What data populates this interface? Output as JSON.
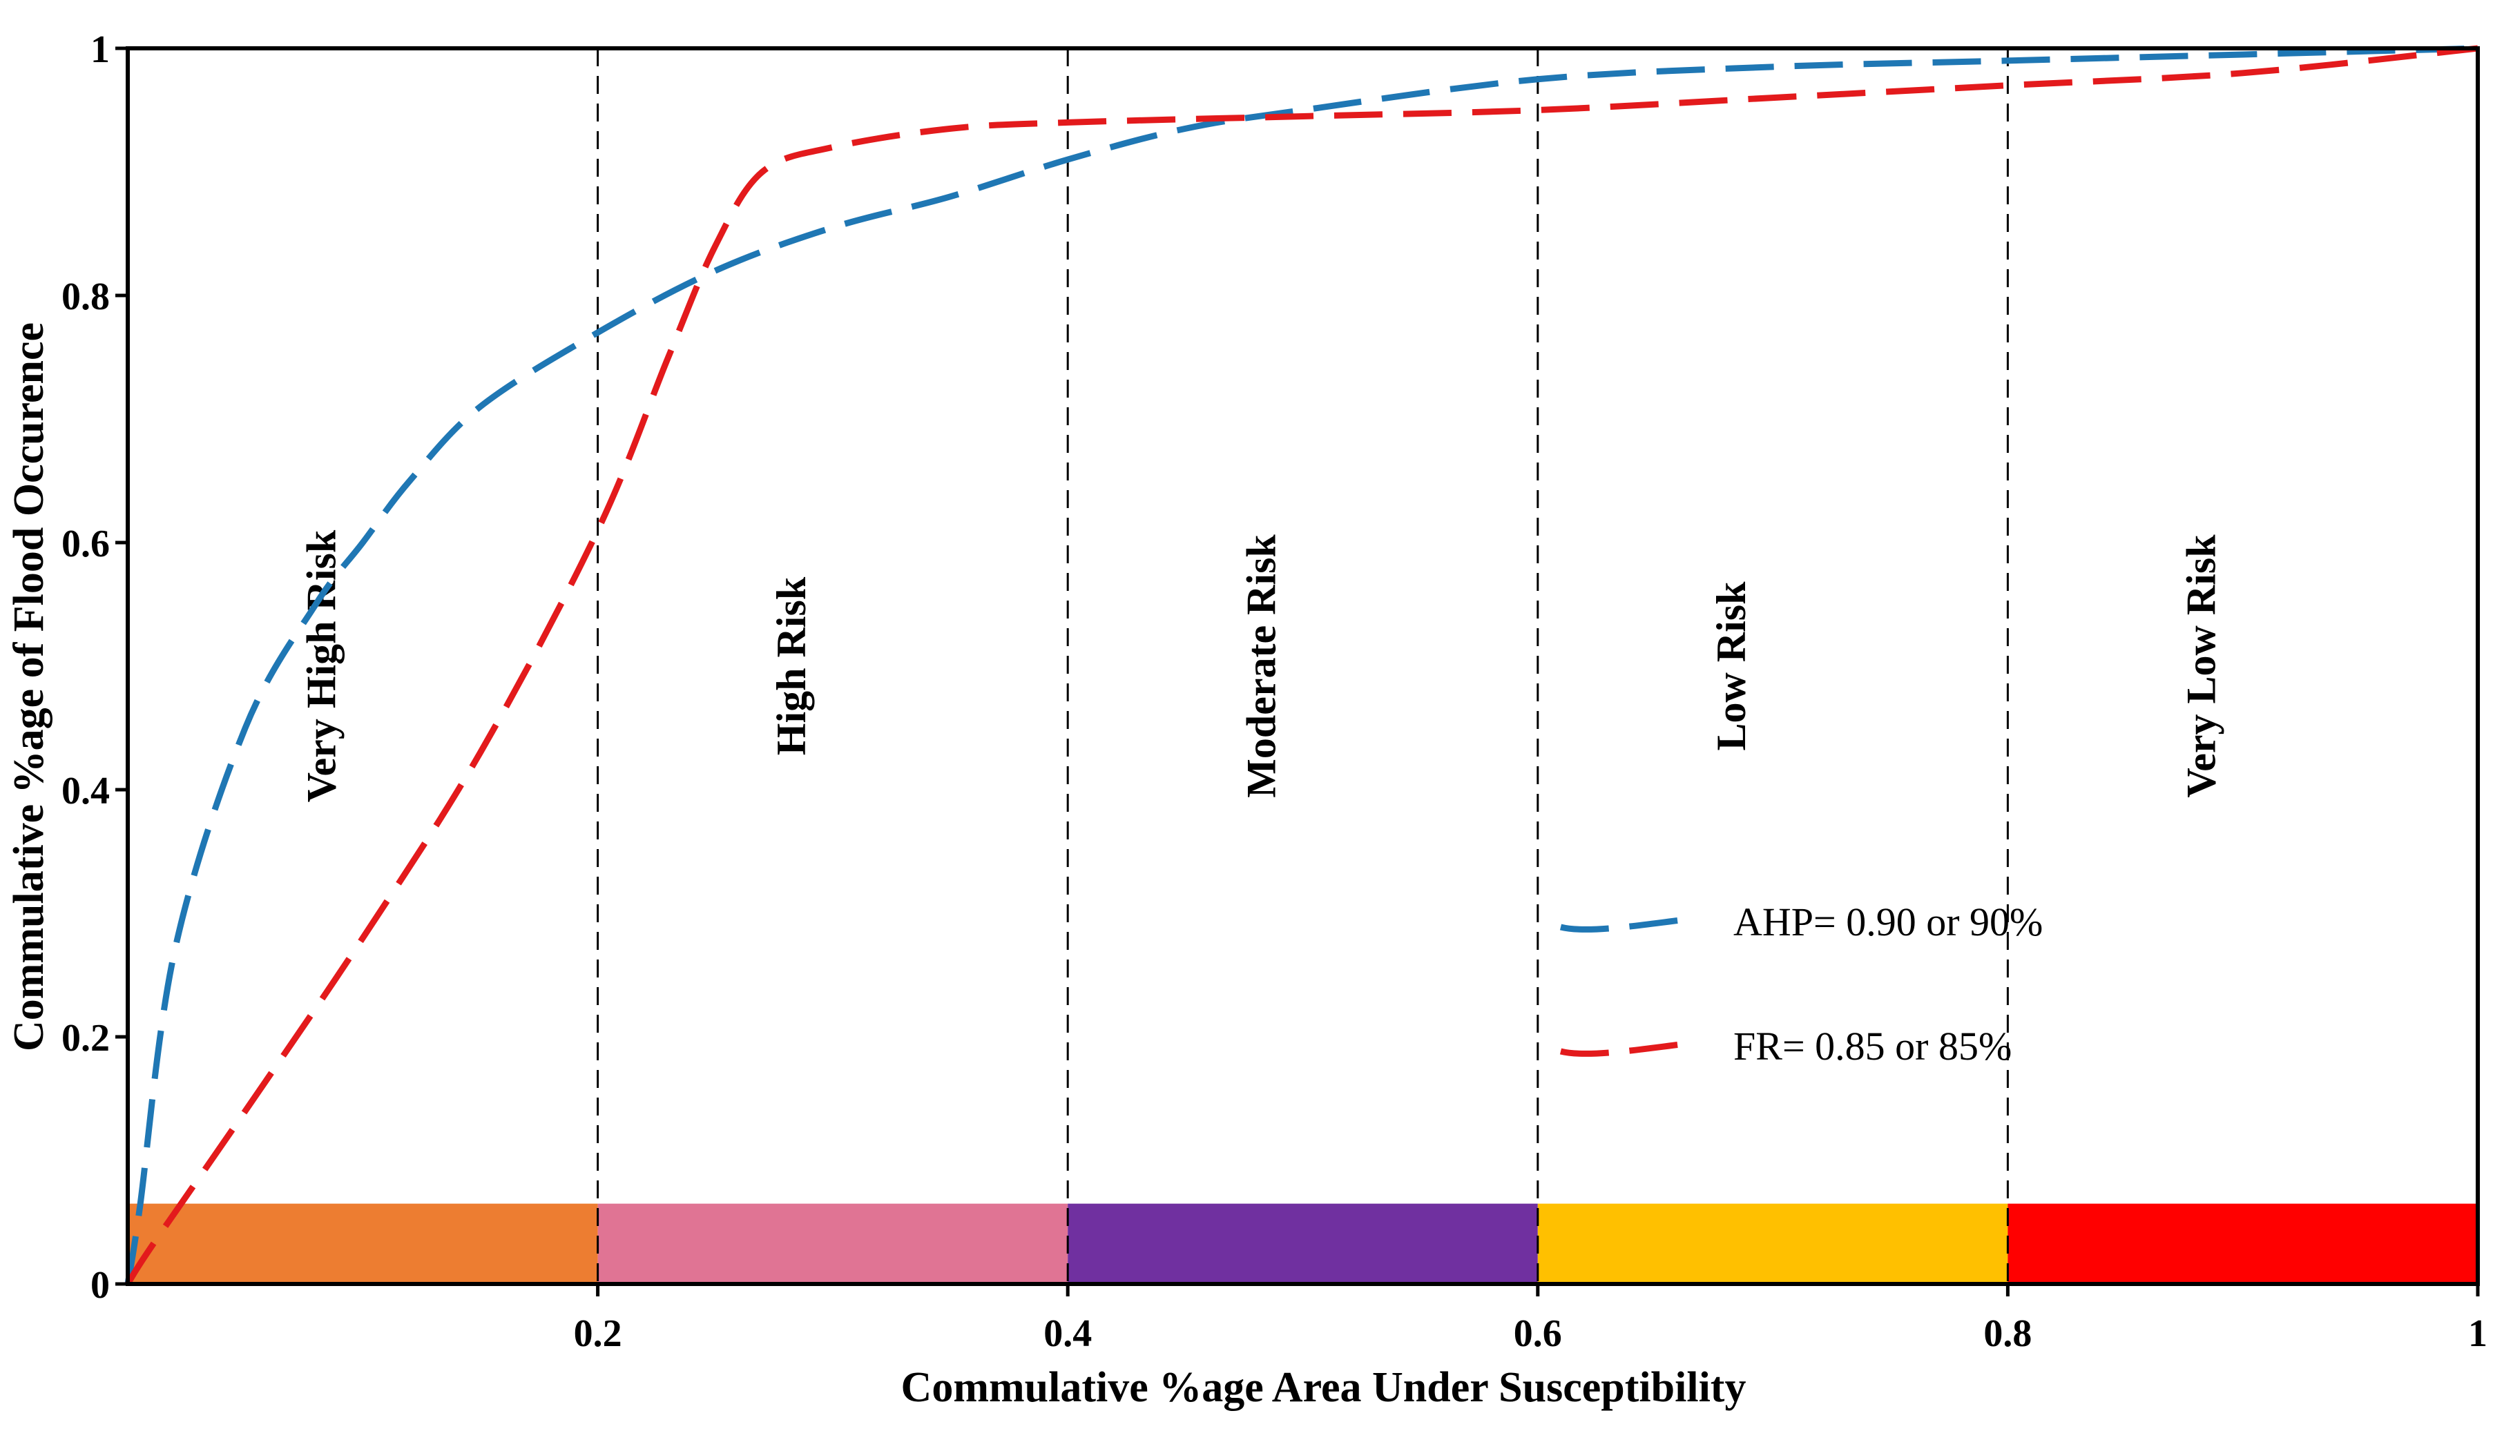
{
  "chart_data": {
    "type": "line",
    "title": "",
    "xlabel": "Commulative %age Area Under Susceptibility",
    "ylabel": "Commulative %age of Flood Occurence",
    "xlim": [
      0,
      1
    ],
    "ylim": [
      0,
      1
    ],
    "x_ticks": [
      "0.2",
      "0.4",
      "0.6",
      "0.8",
      "1"
    ],
    "y_ticks": [
      "0",
      "0.2",
      "0.4",
      "0.6",
      "0.8",
      "1"
    ],
    "grid": "vertical dashed lines at 0.2, 0.4, 0.6, 0.8",
    "legend_placement": "lower-right",
    "series": [
      {
        "name": "AHP= 0.90 or 90%",
        "color": "#1f77b4",
        "line_style": "dashed",
        "x": [
          0.0,
          0.005,
          0.02,
          0.05,
          0.08,
          0.1,
          0.12,
          0.15,
          0.2,
          0.25,
          0.3,
          0.35,
          0.4,
          0.45,
          0.5,
          0.6,
          0.7,
          0.8,
          0.9,
          1.0
        ],
        "y": [
          0.0,
          0.06,
          0.27,
          0.45,
          0.55,
          0.6,
          0.65,
          0.71,
          0.77,
          0.82,
          0.855,
          0.88,
          0.91,
          0.935,
          0.95,
          0.975,
          0.985,
          0.99,
          0.995,
          1.0
        ]
      },
      {
        "name": "FR= 0.85 or 85%",
        "color": "#e31a1c",
        "line_style": "dashed",
        "x": [
          0.0,
          0.01,
          0.05,
          0.1,
          0.15,
          0.2,
          0.23,
          0.25,
          0.27,
          0.3,
          0.35,
          0.4,
          0.5,
          0.6,
          0.7,
          0.8,
          0.9,
          1.0
        ],
        "y": [
          0.0,
          0.03,
          0.14,
          0.28,
          0.43,
          0.61,
          0.75,
          0.84,
          0.9,
          0.92,
          0.935,
          0.94,
          0.945,
          0.95,
          0.96,
          0.97,
          0.98,
          1.0
        ]
      }
    ],
    "zones": [
      {
        "label": "Very High Risk",
        "from": 0.0,
        "to": 0.2,
        "color": "#ed7d31"
      },
      {
        "label": "High Risk",
        "from": 0.2,
        "to": 0.4,
        "color": "#e07494"
      },
      {
        "label": "Moderate Risk",
        "from": 0.4,
        "to": 0.6,
        "color": "#7030a0"
      },
      {
        "label": "Low Risk",
        "from": 0.6,
        "to": 0.8,
        "color": "#ffc000"
      },
      {
        "label": "Very Low Risk",
        "from": 0.8,
        "to": 1.0,
        "color": "#ff0000"
      }
    ],
    "zone_band_height": 0.065,
    "zone_label_y": 0.5
  }
}
